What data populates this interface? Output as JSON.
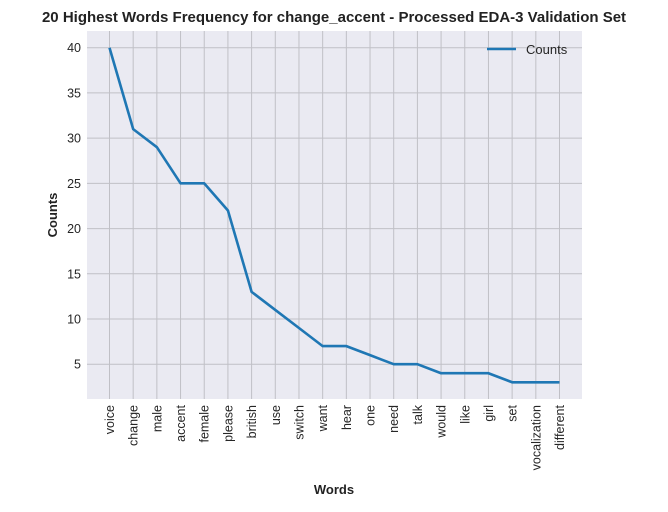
{
  "chart_data": {
    "type": "line",
    "title": "20 Highest Words Frequency for change_accent - Processed EDA-3 Validation Set",
    "xlabel": "Words",
    "ylabel": "Counts",
    "categories": [
      "voice",
      "change",
      "male",
      "accent",
      "female",
      "please",
      "british",
      "use",
      "switch",
      "want",
      "hear",
      "one",
      "need",
      "talk",
      "would",
      "like",
      "girl",
      "set",
      "vocalization",
      "different"
    ],
    "series": [
      {
        "name": "Counts",
        "values": [
          40,
          31,
          29,
          25,
          25,
          22,
          13,
          11,
          9,
          7,
          7,
          6,
          5,
          5,
          4,
          4,
          4,
          3,
          3,
          3
        ],
        "color": "#1f77b4"
      }
    ],
    "ylim": [
      1.15,
      41.85
    ],
    "yticks": [
      5,
      10,
      15,
      20,
      25,
      30,
      35,
      40
    ],
    "grid": true,
    "legend_position": "top-right",
    "background_color": "#eaeaf2",
    "grid_color": "#c0c0c6"
  }
}
